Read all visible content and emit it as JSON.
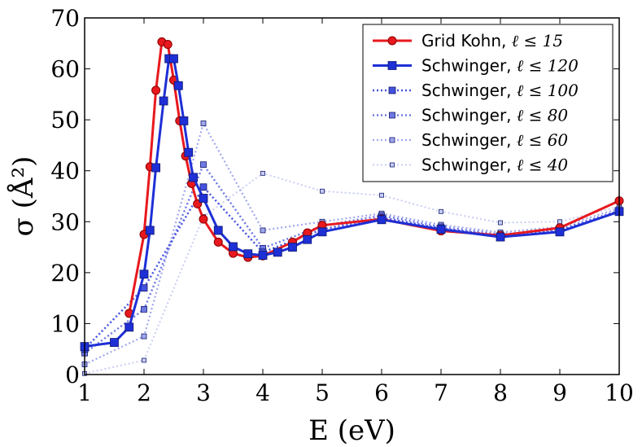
{
  "chart_data": {
    "type": "line",
    "xlabel": "E (eV)",
    "ylabel": "σ (Å²)",
    "xlim": [
      1,
      10
    ],
    "ylim": [
      0,
      70
    ],
    "xticks": [
      "1",
      "2",
      "3",
      "4",
      "5",
      "6",
      "7",
      "8",
      "9",
      "10"
    ],
    "yticks": [
      "0",
      "10",
      "20",
      "30",
      "40",
      "50",
      "60",
      "70"
    ],
    "legend_position": "top-right",
    "series": [
      {
        "name": "Grid Kohn, ℓ ≤ 15",
        "color": "#e8191e",
        "marker": "circle",
        "x": [
          1.75,
          2.0,
          2.1,
          2.2,
          2.3,
          2.4,
          2.5,
          2.6,
          2.7,
          2.8,
          2.9,
          3.0,
          3.25,
          3.5,
          3.75,
          4.0,
          4.5,
          4.75,
          5.0,
          6.0,
          7.0,
          8.0,
          9.0,
          10.0
        ],
        "y": [
          12.0,
          27.5,
          40.8,
          55.8,
          65.3,
          64.8,
          57.8,
          49.8,
          42.9,
          37.5,
          33.5,
          30.5,
          26.0,
          23.8,
          23.0,
          23.3,
          26.0,
          27.8,
          29.3,
          30.5,
          28.2,
          27.3,
          28.8,
          34.1
        ]
      },
      {
        "name": "Schwinger, ℓ ≤ 120",
        "color": "#1e2fd6",
        "marker": "square",
        "x": [
          1.0,
          1.5,
          1.75,
          2.0,
          2.1,
          2.2,
          2.33,
          2.42,
          2.5,
          2.58,
          2.67,
          2.75,
          2.83,
          3.0,
          3.25,
          3.5,
          3.75,
          4.0,
          4.25,
          4.5,
          4.75,
          5.0,
          6.0,
          7.0,
          8.0,
          9.0,
          10.0
        ],
        "y": [
          5.5,
          6.3,
          9.3,
          19.7,
          28.3,
          40.6,
          53.7,
          62.0,
          62.0,
          56.7,
          49.8,
          43.6,
          38.7,
          34.6,
          28.3,
          25.1,
          23.7,
          23.4,
          24.0,
          25.0,
          26.5,
          28.0,
          30.4,
          28.5,
          27.0,
          28.0,
          32.0
        ]
      },
      {
        "name": "Schwinger, ℓ ≤ 100",
        "color": "#4452dd",
        "marker": "square",
        "x": [
          1.0,
          2.0,
          3.0,
          4.0,
          5.0,
          6.0,
          7.0,
          8.0,
          9.0,
          10.0
        ],
        "y": [
          5.0,
          17.0,
          36.8,
          24.0,
          28.5,
          30.8,
          28.7,
          27.2,
          28.2,
          32.0
        ]
      },
      {
        "name": "Schwinger, ℓ ≤ 80",
        "color": "#6f79e3",
        "marker": "square",
        "x": [
          1.0,
          2.0,
          3.0,
          4.0,
          5.0,
          6.0,
          7.0,
          8.0,
          9.0,
          10.0
        ],
        "y": [
          4.2,
          12.8,
          41.2,
          24.8,
          29.2,
          31.2,
          29.0,
          27.5,
          28.5,
          32.2
        ]
      },
      {
        "name": "Schwinger, ℓ ≤ 60",
        "color": "#a0a7ec",
        "marker": "square",
        "x": [
          1.0,
          2.0,
          3.0,
          4.0,
          5.0,
          6.0,
          7.0,
          8.0,
          9.0,
          10.0
        ],
        "y": [
          2.0,
          7.5,
          49.3,
          28.3,
          30.0,
          31.6,
          29.4,
          27.9,
          29.0,
          32.6
        ]
      },
      {
        "name": "Schwinger, ℓ ≤ 40",
        "color": "#c9cdf4",
        "marker": "square",
        "x": [
          1.0,
          2.0,
          3.0,
          4.0,
          5.0,
          6.0,
          7.0,
          8.0,
          9.0,
          10.0
        ],
        "y": [
          0.2,
          2.8,
          31.0,
          39.5,
          36.0,
          35.2,
          32.0,
          29.8,
          30.0,
          33.0
        ]
      }
    ]
  },
  "legend": [
    {
      "main": "Grid Kohn, ",
      "cond": "ℓ ≤ 15"
    },
    {
      "main": "Schwinger, ",
      "cond": "ℓ ≤ 120"
    },
    {
      "main": "Schwinger, ",
      "cond": "ℓ ≤ 100"
    },
    {
      "main": "Schwinger, ",
      "cond": "ℓ ≤ 80"
    },
    {
      "main": "Schwinger, ",
      "cond": "ℓ ≤ 60"
    },
    {
      "main": "Schwinger, ",
      "cond": "ℓ ≤ 40"
    }
  ]
}
